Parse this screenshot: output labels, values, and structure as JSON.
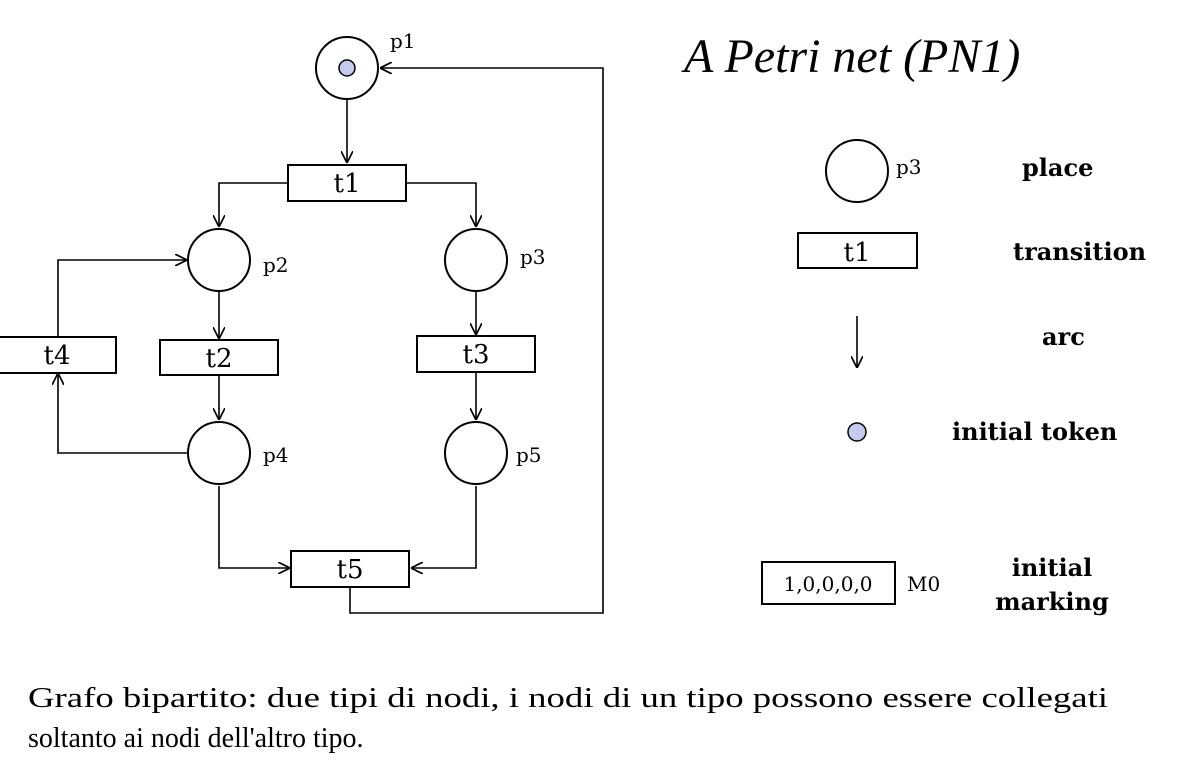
{
  "title": "A Petri net (PN1)",
  "net": {
    "places": {
      "p1": "p1",
      "p2": "p2",
      "p3": "p3",
      "p4": "p4",
      "p5": "p5"
    },
    "transitions": {
      "t1": "t1",
      "t2": "t2",
      "t3": "t3",
      "t4": "t4",
      "t5": "t5"
    },
    "initial_token_place": "p1"
  },
  "legend": {
    "place_sample": "p3",
    "place_label": "place",
    "transition_sample": "t1",
    "transition_label": "transition",
    "arc_label": "arc",
    "token_label": "initial token",
    "marking_value": "1,0,0,0,0",
    "marking_name": "M0",
    "marking_label_line1": "initial",
    "marking_label_line2": "marking"
  },
  "caption": {
    "line1": "Grafo bipartito: due tipi di nodi, i nodi di un tipo possono essere collegati",
    "line2": "soltanto ai nodi dell'altro tipo."
  },
  "colors": {
    "token": "#c5cbef",
    "stroke": "#000000",
    "background": "#ffffff"
  }
}
